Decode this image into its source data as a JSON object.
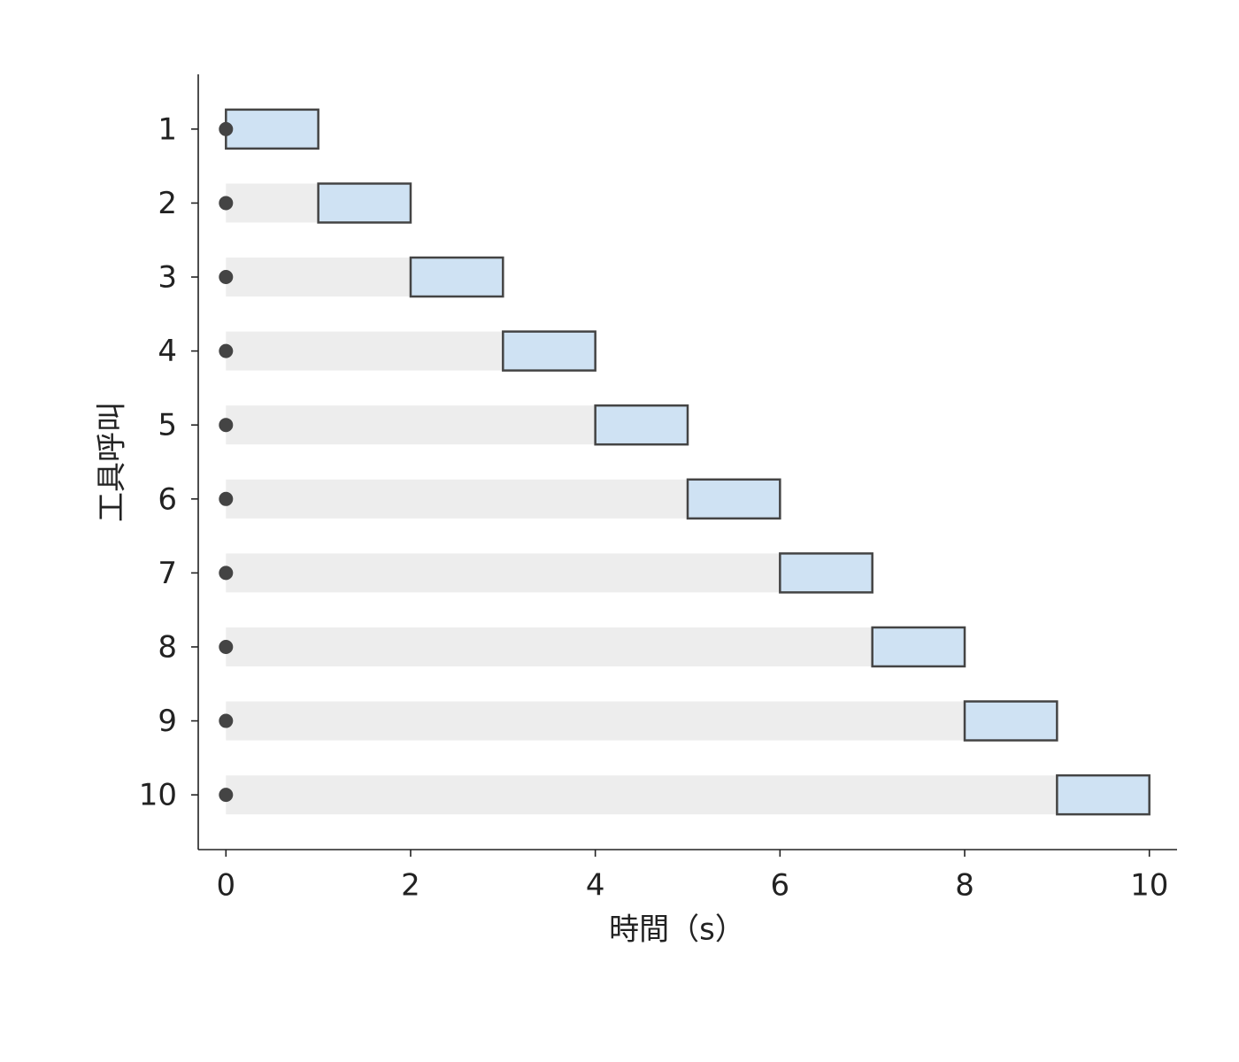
{
  "chart_data": {
    "type": "gantt",
    "x_label": "時間（s）",
    "y_label": "工具呼叫",
    "categories": [
      "1",
      "2",
      "3",
      "4",
      "5",
      "6",
      "7",
      "8",
      "9",
      "10"
    ],
    "stacked": true,
    "orientation": "horizontal",
    "series": [
      {
        "color": "#ededed",
        "values": [
          0,
          1,
          2,
          3,
          4,
          5,
          6,
          7,
          8,
          9
        ]
      },
      {
        "color": "#cfe2f3",
        "edge_color": "#444444",
        "values": [
          1,
          1,
          1,
          1,
          1,
          1,
          1,
          1,
          1,
          1
        ]
      }
    ],
    "markers": {
      "color": "#444444",
      "values": [
        0,
        0,
        0,
        0,
        0,
        0,
        0,
        0,
        0,
        0
      ]
    },
    "xlim": [
      -0.3,
      10.3
    ],
    "xticks": [
      0,
      2,
      4,
      6,
      8,
      10
    ],
    "grid": false
  }
}
